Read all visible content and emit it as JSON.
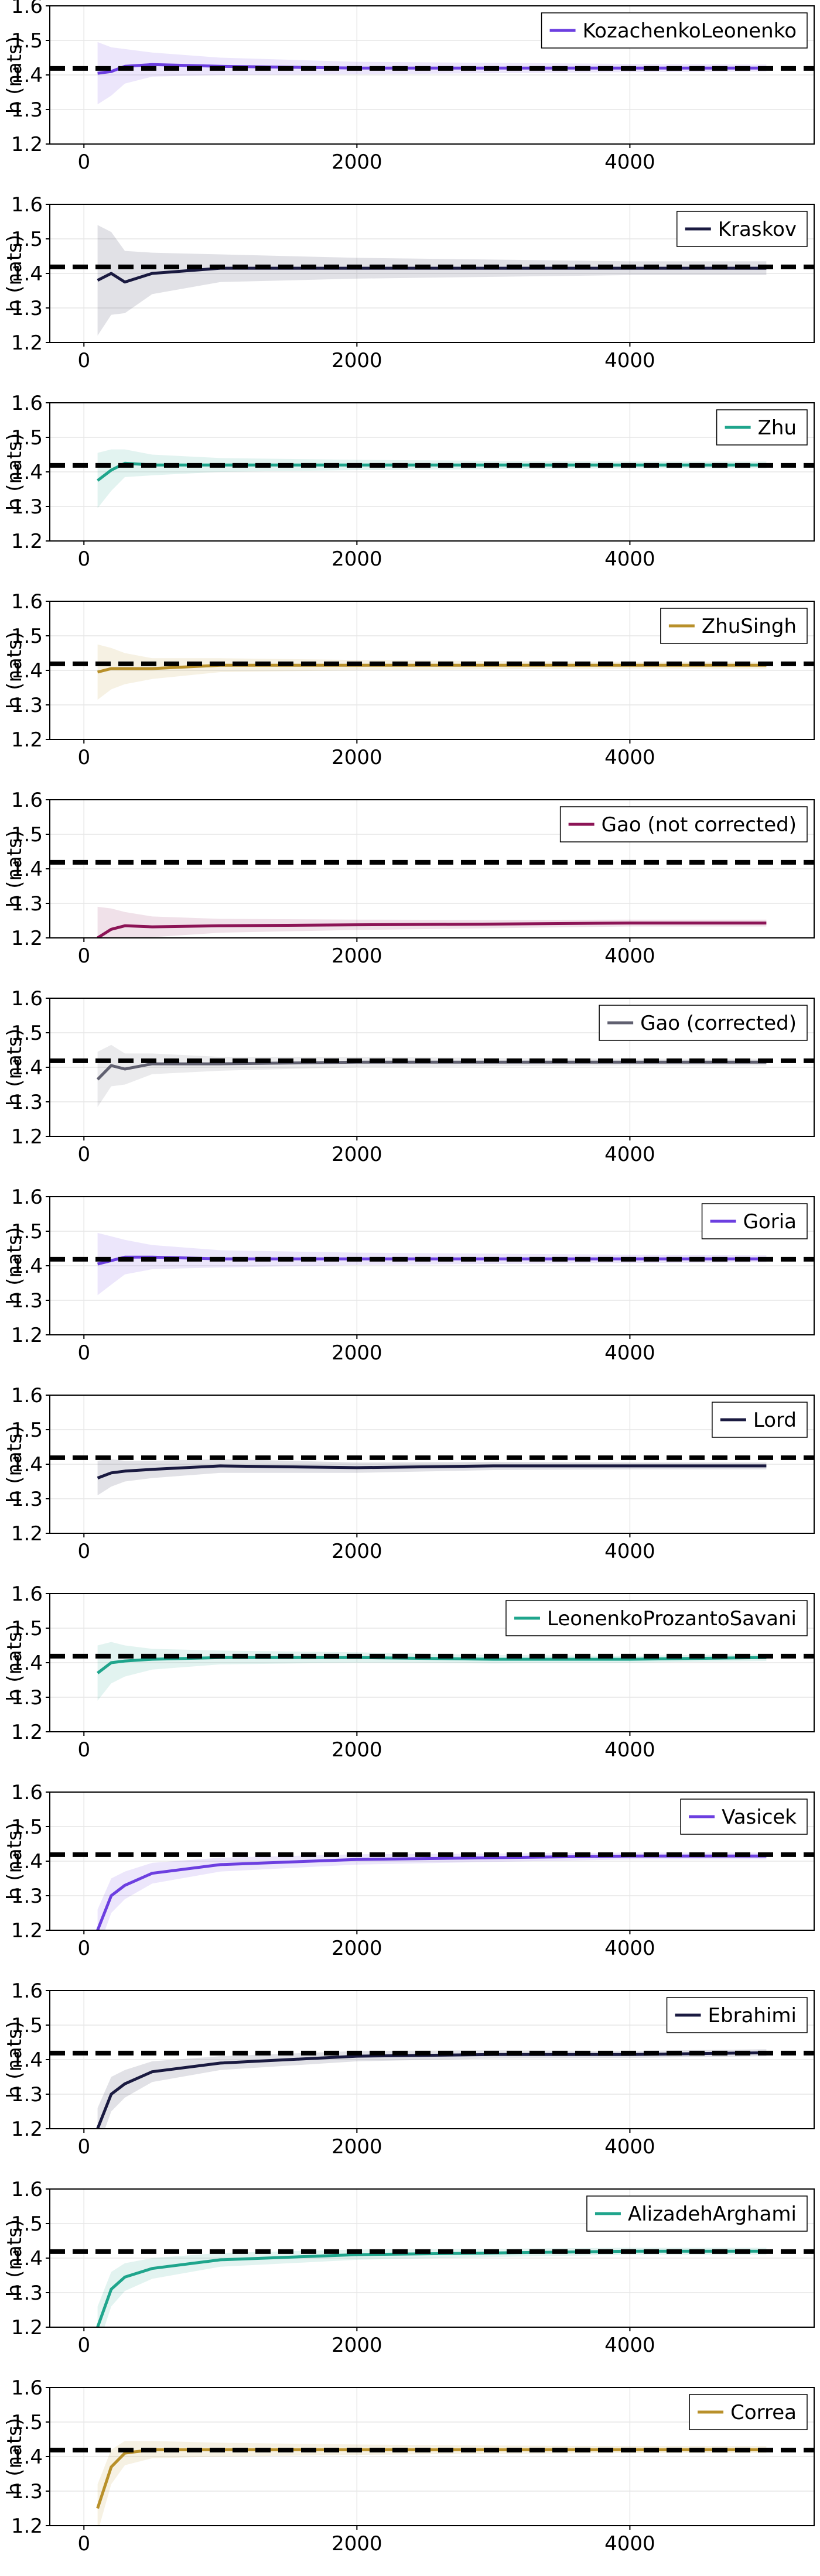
{
  "chart_data": {
    "type": "line",
    "ylabel": "h (nats)",
    "x": [
      100,
      200,
      300,
      500,
      1000,
      2000,
      3000,
      4000,
      5000
    ],
    "xticks": [
      0,
      2000,
      4000
    ],
    "yticks": [
      1.2,
      1.3,
      1.4,
      1.5,
      1.6
    ],
    "xlim": [
      -250,
      5350
    ],
    "ylim": [
      1.2,
      1.6
    ],
    "reference_value": 1.4189,
    "grid": true,
    "legend_position": "top-right",
    "series": [
      {
        "name": "KozachenkoLeonenko",
        "color": "#6C3FE0",
        "values": [
          1.405,
          1.41,
          1.425,
          1.43,
          1.425,
          1.42,
          1.42,
          1.42,
          1.42
        ],
        "band_halfwidth": [
          0.09,
          0.07,
          0.05,
          0.035,
          0.025,
          0.018,
          0.015,
          0.012,
          0.01
        ]
      },
      {
        "name": "Kraskov",
        "color": "#1A1A40",
        "values": [
          1.38,
          1.4,
          1.375,
          1.4,
          1.415,
          1.415,
          1.415,
          1.415,
          1.415
        ],
        "band_halfwidth": [
          0.16,
          0.12,
          0.09,
          0.06,
          0.04,
          0.03,
          0.025,
          0.02,
          0.02
        ]
      },
      {
        "name": "Zhu",
        "color": "#1FA58C",
        "values": [
          1.375,
          1.405,
          1.425,
          1.42,
          1.42,
          1.42,
          1.42,
          1.42,
          1.42
        ],
        "band_halfwidth": [
          0.08,
          0.06,
          0.04,
          0.03,
          0.02,
          0.015,
          0.012,
          0.01,
          0.01
        ]
      },
      {
        "name": "ZhuSingh",
        "color": "#B8902A",
        "values": [
          1.395,
          1.405,
          1.405,
          1.405,
          1.415,
          1.415,
          1.415,
          1.415,
          1.415
        ],
        "band_halfwidth": [
          0.08,
          0.06,
          0.045,
          0.03,
          0.02,
          0.015,
          0.012,
          0.01,
          0.01
        ]
      },
      {
        "name": "Gao (not corrected)",
        "color": "#8C1456",
        "values": [
          1.2,
          1.225,
          1.235,
          1.232,
          1.235,
          1.238,
          1.24,
          1.243,
          1.243
        ],
        "band_halfwidth": [
          0.09,
          0.06,
          0.04,
          0.03,
          0.02,
          0.015,
          0.012,
          0.01,
          0.01
        ]
      },
      {
        "name": "Gao (corrected)",
        "color": "#606070",
        "values": [
          1.365,
          1.405,
          1.395,
          1.41,
          1.41,
          1.415,
          1.415,
          1.415,
          1.415
        ],
        "band_halfwidth": [
          0.08,
          0.06,
          0.045,
          0.03,
          0.02,
          0.015,
          0.012,
          0.01,
          0.01
        ]
      },
      {
        "name": "Goria",
        "color": "#6C3FE0",
        "values": [
          1.405,
          1.415,
          1.425,
          1.425,
          1.42,
          1.42,
          1.42,
          1.42,
          1.42
        ],
        "band_halfwidth": [
          0.09,
          0.07,
          0.05,
          0.035,
          0.025,
          0.018,
          0.015,
          0.012,
          0.01
        ]
      },
      {
        "name": "Lord",
        "color": "#1A1A40",
        "values": [
          1.36,
          1.375,
          1.38,
          1.385,
          1.395,
          1.39,
          1.395,
          1.395,
          1.395
        ],
        "band_halfwidth": [
          0.05,
          0.04,
          0.03,
          0.025,
          0.02,
          0.015,
          0.012,
          0.01,
          0.01
        ]
      },
      {
        "name": "LeonenkoProzantoSavani",
        "color": "#1FA58C",
        "values": [
          1.37,
          1.4,
          1.405,
          1.41,
          1.415,
          1.415,
          1.41,
          1.41,
          1.415
        ],
        "band_halfwidth": [
          0.08,
          0.06,
          0.045,
          0.03,
          0.02,
          0.015,
          0.012,
          0.01,
          0.01
        ]
      },
      {
        "name": "Vasicek",
        "color": "#6C3FE0",
        "values": [
          1.2,
          1.3,
          1.33,
          1.365,
          1.39,
          1.405,
          1.41,
          1.415,
          1.415
        ],
        "band_halfwidth": [
          0.06,
          0.05,
          0.04,
          0.03,
          0.02,
          0.015,
          0.012,
          0.01,
          0.01
        ]
      },
      {
        "name": "Ebrahimi",
        "color": "#1A1A40",
        "values": [
          1.2,
          1.3,
          1.33,
          1.365,
          1.39,
          1.41,
          1.415,
          1.415,
          1.42
        ],
        "band_halfwidth": [
          0.06,
          0.05,
          0.04,
          0.03,
          0.02,
          0.015,
          0.012,
          0.01,
          0.01
        ]
      },
      {
        "name": "AlizadehArghami",
        "color": "#1FA58C",
        "values": [
          1.2,
          1.31,
          1.345,
          1.37,
          1.395,
          1.41,
          1.415,
          1.42,
          1.42
        ],
        "band_halfwidth": [
          0.06,
          0.05,
          0.04,
          0.03,
          0.02,
          0.015,
          0.012,
          0.01,
          0.01
        ]
      },
      {
        "name": "Correa",
        "color": "#B8902A",
        "values": [
          1.25,
          1.37,
          1.41,
          1.42,
          1.42,
          1.42,
          1.42,
          1.42,
          1.42
        ],
        "band_halfwidth": [
          0.07,
          0.05,
          0.035,
          0.025,
          0.02,
          0.015,
          0.012,
          0.01,
          0.01
        ]
      }
    ]
  }
}
